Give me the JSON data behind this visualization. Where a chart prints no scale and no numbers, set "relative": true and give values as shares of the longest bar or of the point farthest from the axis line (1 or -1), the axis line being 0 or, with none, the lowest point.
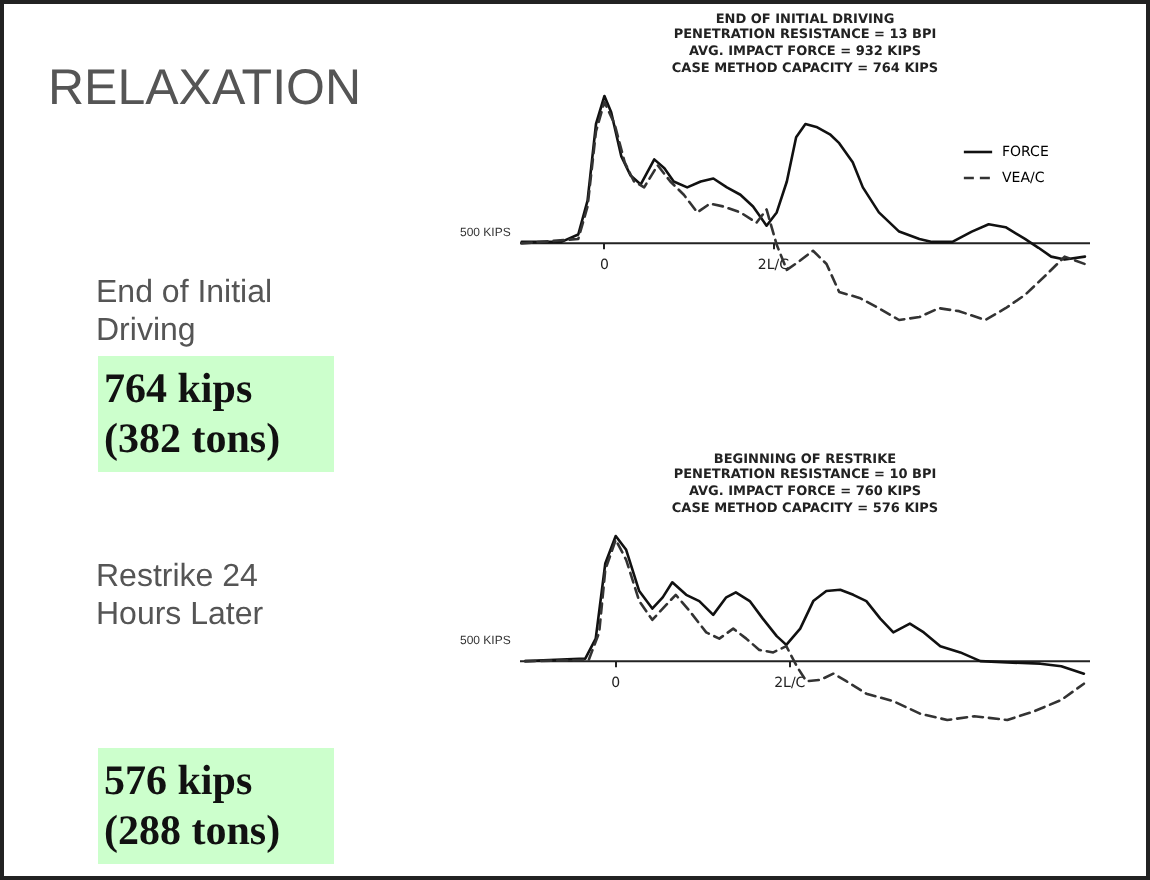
{
  "chart_data": [
    {
      "type": "line",
      "title": "END OF INITIAL DRIVING",
      "subtitle": "PENETRATION RESISTANCE = 13 BPI\nAVG. IMPACT FORCE = 932 KIPS\nCASE METHOD CAPACITY = 764 KIPS",
      "relative": true,
      "xlim": [
        -1,
        5.75
      ],
      "xticks": [
        0,
        {
          "value": 2,
          "label": "2L/C"
        }
      ],
      "legend": "top right",
      "annotations": [
        "RELAXATION",
        "End of Initial Driving",
        "764 kips (382 tons)",
        "500 KIPS"
      ],
      "series": [
        {
          "name": "FORCE",
          "color": "#111111",
          "line_style": "solid",
          "x": [
            -0.98,
            -0.51,
            -0.31,
            -0.2,
            -0.1,
            0,
            0.08,
            0.2,
            0.31,
            0.43,
            0.59,
            0.71,
            0.82,
            0.98,
            1.14,
            1.29,
            1.45,
            1.61,
            1.76,
            1.92,
            2.04,
            2.16,
            2.27,
            2.38,
            2.51,
            2.67,
            2.78,
            2.94,
            3.06,
            3.25,
            3.49,
            3.73,
            3.88,
            4.12,
            4.35,
            4.55,
            4.75,
            4.98,
            5.14,
            5.29,
            5.45,
            5.69
          ],
          "values": [
            0.01,
            0.01,
            0.06,
            0.29,
            0.81,
            1,
            0.89,
            0.59,
            0.46,
            0.4,
            0.57,
            0.51,
            0.42,
            0.38,
            0.42,
            0.44,
            0.38,
            0.33,
            0.25,
            0.12,
            0.21,
            0.42,
            0.72,
            0.81,
            0.79,
            0.74,
            0.68,
            0.55,
            0.38,
            0.21,
            0.08,
            0.03,
            0.01,
            0.01,
            0.08,
            0.13,
            0.11,
            0.03,
            -0.03,
            -0.09,
            -0.11,
            -0.09
          ]
        },
        {
          "name": "VEA/C",
          "color": "#333333",
          "line_style": "dashed",
          "x": [
            -0.98,
            -0.31,
            -0.2,
            -0.1,
            0,
            0.12,
            0.24,
            0.35,
            0.47,
            0.63,
            0.78,
            0.94,
            1.1,
            1.25,
            1.41,
            1.61,
            1.8,
            1.92,
            2.04,
            2.16,
            2.31,
            2.47,
            2.63,
            2.78,
            3.02,
            3.25,
            3.49,
            3.73,
            3.96,
            4.2,
            4.51,
            4.75,
            4.98,
            5.22,
            5.45,
            5.69
          ],
          "values": [
            0,
            0.03,
            0.25,
            0.76,
            0.96,
            0.81,
            0.55,
            0.42,
            0.38,
            0.53,
            0.42,
            0.33,
            0.21,
            0.27,
            0.25,
            0.21,
            0.14,
            0.23,
            -0.01,
            -0.18,
            -0.12,
            -0.05,
            -0.14,
            -0.33,
            -0.37,
            -0.44,
            -0.52,
            -0.5,
            -0.44,
            -0.46,
            -0.52,
            -0.44,
            -0.35,
            -0.22,
            -0.09,
            -0.14
          ]
        }
      ]
    },
    {
      "type": "line",
      "title": "BEGINNING OF RESTRIKE",
      "subtitle": "PENETRATION RESISTANCE = 10 BPI\nAVG. IMPACT FORCE = 760 KIPS\nCASE METHOD CAPACITY = 576 KIPS",
      "relative": true,
      "xlim": [
        -1.1,
        5.45
      ],
      "xticks": [
        0,
        {
          "value": 2,
          "label": "2L/C"
        }
      ],
      "annotations": [
        "Restrike 24 Hours Later",
        "576 kips (288 tons)",
        "500 KIPS"
      ],
      "series": [
        {
          "color": "#111111",
          "line_style": "solid",
          "x": [
            -1.04,
            -0.35,
            -0.23,
            -0.12,
            0,
            0.12,
            0.27,
            0.42,
            0.54,
            0.65,
            0.81,
            0.96,
            1.12,
            1.27,
            1.38,
            1.54,
            1.69,
            1.85,
            1.96,
            2.12,
            2.27,
            2.42,
            2.58,
            2.73,
            2.88,
            3.04,
            3.19,
            3.38,
            3.54,
            3.73,
            3.96,
            4.19,
            4.5,
            4.88,
            5.12,
            5.38
          ],
          "values": [
            0,
            0.02,
            0.18,
            0.78,
            1,
            0.89,
            0.56,
            0.42,
            0.51,
            0.63,
            0.53,
            0.48,
            0.37,
            0.51,
            0.55,
            0.48,
            0.34,
            0.2,
            0.13,
            0.26,
            0.48,
            0.56,
            0.57,
            0.53,
            0.48,
            0.34,
            0.23,
            0.3,
            0.23,
            0.12,
            0.07,
            0,
            -0.01,
            -0.02,
            -0.04,
            -0.1
          ]
        },
        {
          "color": "#333333",
          "line_style": "dashed",
          "x": [
            -1.04,
            -0.31,
            -0.19,
            -0.12,
            0,
            0.12,
            0.27,
            0.42,
            0.58,
            0.69,
            0.85,
            1.04,
            1.19,
            1.35,
            1.5,
            1.65,
            1.81,
            1.96,
            2.08,
            2.19,
            2.35,
            2.5,
            2.65,
            2.88,
            3.19,
            3.5,
            3.81,
            4.12,
            4.5,
            4.81,
            5.12,
            5.38
          ],
          "values": [
            0,
            0.01,
            0.23,
            0.73,
            0.97,
            0.81,
            0.48,
            0.33,
            0.45,
            0.53,
            0.4,
            0.23,
            0.18,
            0.26,
            0.18,
            0.09,
            0.07,
            0.12,
            -0.04,
            -0.16,
            -0.15,
            -0.1,
            -0.16,
            -0.26,
            -0.32,
            -0.42,
            -0.47,
            -0.44,
            -0.47,
            -0.4,
            -0.31,
            -0.18
          ]
        }
      ]
    }
  ]
}
